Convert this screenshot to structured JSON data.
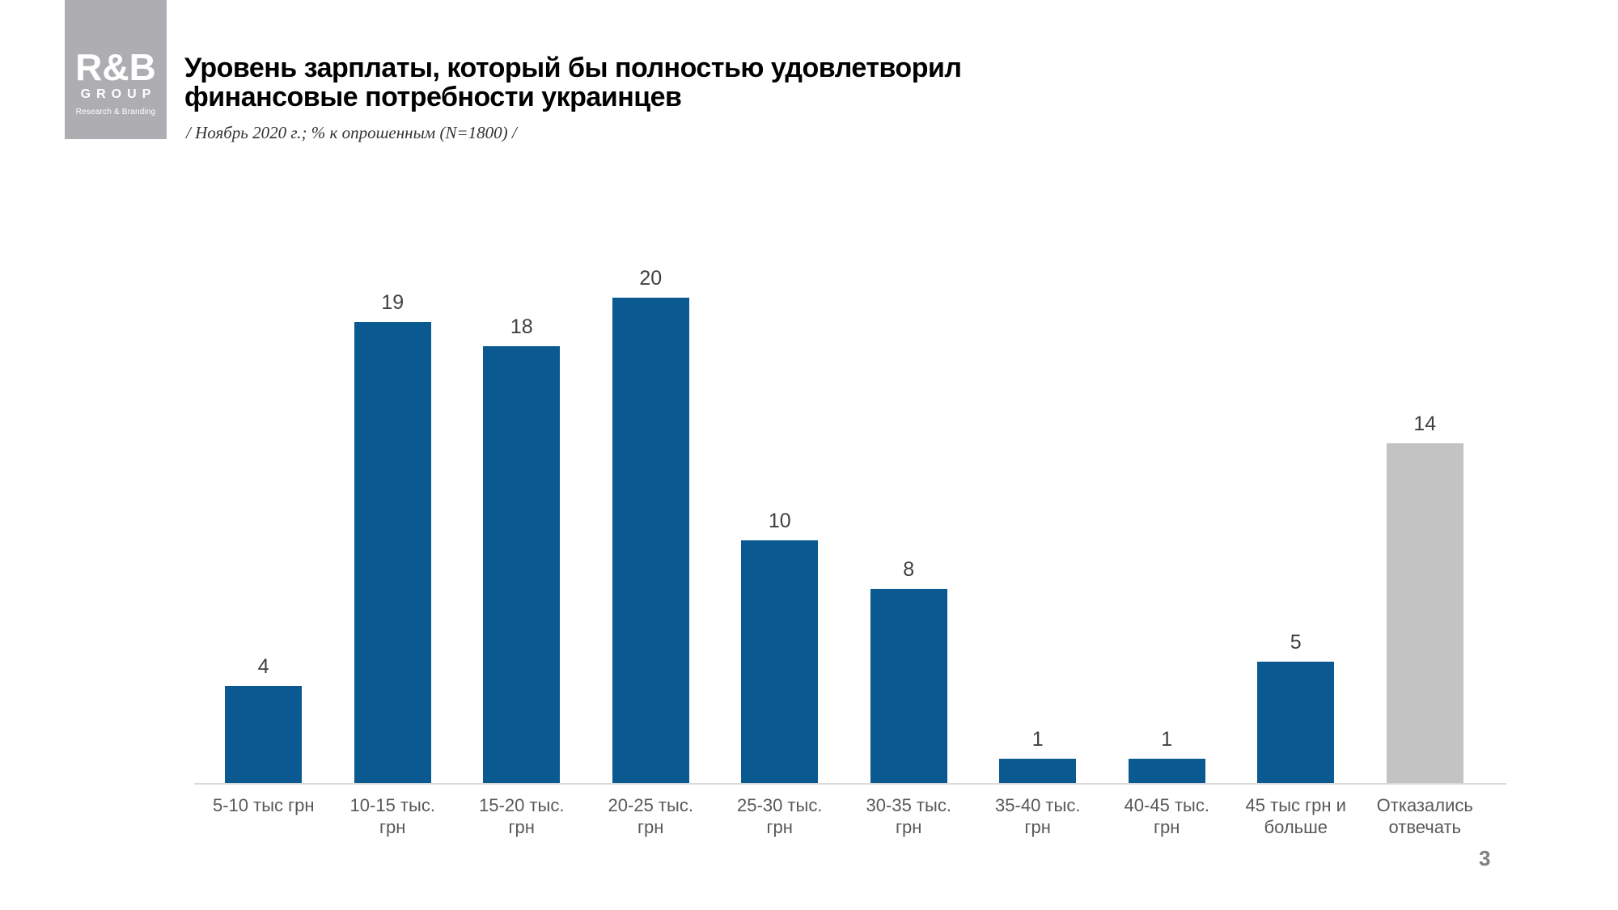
{
  "slide": {
    "page_number": "3"
  },
  "logo": {
    "brand": "R&B",
    "group": "GROUP",
    "tagline": "Research & Branding"
  },
  "header": {
    "title_line1": "Уровень зарплаты, который бы полностью удовлетворил",
    "title_line2": "финансовые потребности украинцев",
    "subtitle": "/ Ноябрь 2020 г.; % к опрошенным (N=1800) /"
  },
  "colors": {
    "bar_blue": "#0A5A91",
    "bar_gray": "#C3C3C3",
    "logo_gray": "#AEAEB2",
    "value_label": "#404040",
    "category_label": "#595959",
    "axis_line": "#D9D9D9",
    "page_number": "#808080"
  },
  "chart_data": {
    "type": "bar",
    "title": "Уровень зарплаты, который бы полностью удовлетворил финансовые потребности украинцев",
    "subtitle": "/ Ноябрь 2020 г.; % к опрошенным (N=1800) /",
    "categories": [
      "5-10 тыс грн",
      "10-15 тыс. грн",
      "15-20 тыс. грн",
      "20-25 тыс. грн",
      "25-30 тыс. грн",
      "30-35 тыс. грн",
      "35-40 тыс. грн",
      "40-45 тыс. грн",
      "45 тыс грн и больше",
      "Отказались отвечать"
    ],
    "values": [
      4,
      19,
      18,
      20,
      10,
      8,
      1,
      1,
      5,
      14
    ],
    "bar_colors": [
      "blue",
      "blue",
      "blue",
      "blue",
      "blue",
      "blue",
      "blue",
      "blue",
      "blue",
      "gray"
    ],
    "xlabel": "",
    "ylabel": "",
    "ylim": [
      0,
      21
    ],
    "grid": false,
    "legend": null,
    "data_labels": true,
    "units": "% of respondents"
  }
}
